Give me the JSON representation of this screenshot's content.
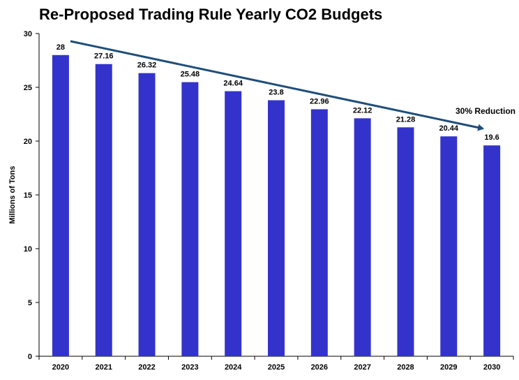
{
  "chart_data": {
    "type": "bar",
    "title": "Re-Proposed Trading Rule Yearly CO2 Budgets",
    "xlabel": "",
    "ylabel": "Millions of Tons",
    "categories": [
      "2020",
      "2021",
      "2022",
      "2023",
      "2024",
      "2025",
      "2026",
      "2027",
      "2028",
      "2029",
      "2030"
    ],
    "values": [
      28,
      27.16,
      26.32,
      25.48,
      24.64,
      23.8,
      22.96,
      22.12,
      21.28,
      20.44,
      19.6
    ],
    "data_labels": [
      "28",
      "27.16",
      "26.32",
      "25.48",
      "24.64",
      "23.8",
      "22.96",
      "22.12",
      "21.28",
      "20.44",
      "19.6"
    ],
    "ylim": [
      0,
      30
    ],
    "yticks": [
      0,
      5,
      10,
      15,
      20,
      25,
      30
    ],
    "grid": false,
    "bar_color": "#3333CC",
    "annotation": {
      "text": "30% Reduction",
      "arrow_color": "#1F4E79",
      "from_category": "2020",
      "to_category": "2030"
    }
  }
}
